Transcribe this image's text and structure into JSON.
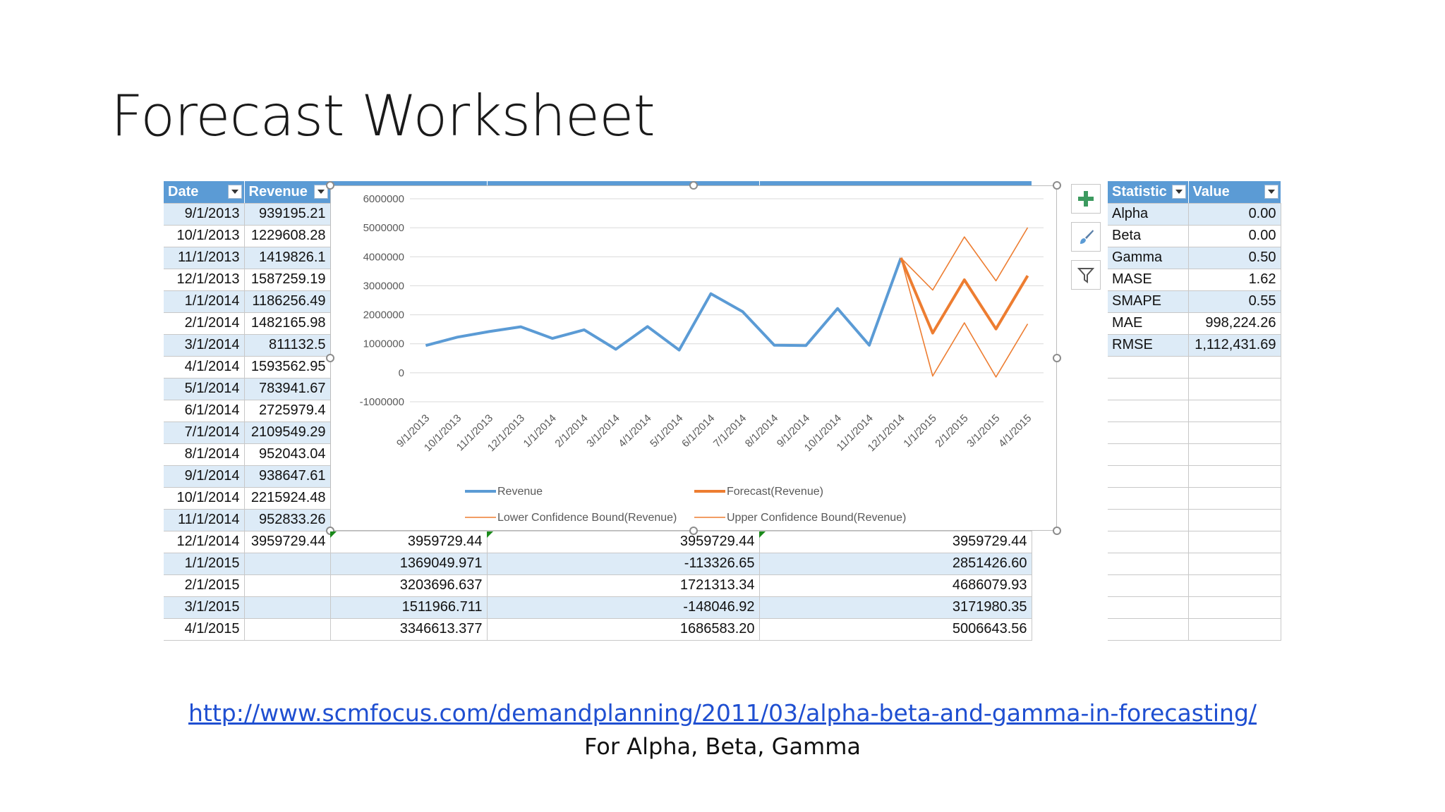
{
  "slide": {
    "title": "Forecast Worksheet",
    "link": "http://www.scmfocus.com/demandplanning/2011/03/alpha-beta-and-gamma-in-forecasting/",
    "caption": "For Alpha, Beta, Gamma"
  },
  "table": {
    "headers": [
      "Date",
      "Revenue"
    ],
    "rows": [
      {
        "date": "9/1/2013",
        "revenue": "939195.21",
        "forecast": "",
        "lower": "",
        "upper": ""
      },
      {
        "date": "10/1/2013",
        "revenue": "1229608.28",
        "forecast": "",
        "lower": "",
        "upper": ""
      },
      {
        "date": "11/1/2013",
        "revenue": "1419826.1",
        "forecast": "",
        "lower": "",
        "upper": ""
      },
      {
        "date": "12/1/2013",
        "revenue": "1587259.19",
        "forecast": "",
        "lower": "",
        "upper": ""
      },
      {
        "date": "1/1/2014",
        "revenue": "1186256.49",
        "forecast": "",
        "lower": "",
        "upper": ""
      },
      {
        "date": "2/1/2014",
        "revenue": "1482165.98",
        "forecast": "",
        "lower": "",
        "upper": ""
      },
      {
        "date": "3/1/2014",
        "revenue": "811132.5",
        "forecast": "",
        "lower": "",
        "upper": ""
      },
      {
        "date": "4/1/2014",
        "revenue": "1593562.95",
        "forecast": "",
        "lower": "",
        "upper": ""
      },
      {
        "date": "5/1/2014",
        "revenue": "783941.67",
        "forecast": "",
        "lower": "",
        "upper": ""
      },
      {
        "date": "6/1/2014",
        "revenue": "2725979.4",
        "forecast": "",
        "lower": "",
        "upper": ""
      },
      {
        "date": "7/1/2014",
        "revenue": "2109549.29",
        "forecast": "",
        "lower": "",
        "upper": ""
      },
      {
        "date": "8/1/2014",
        "revenue": "952043.04",
        "forecast": "",
        "lower": "",
        "upper": ""
      },
      {
        "date": "9/1/2014",
        "revenue": "938647.61",
        "forecast": "",
        "lower": "",
        "upper": ""
      },
      {
        "date": "10/1/2014",
        "revenue": "2215924.48",
        "forecast": "",
        "lower": "",
        "upper": ""
      },
      {
        "date": "11/1/2014",
        "revenue": "952833.26",
        "forecast": "",
        "lower": "",
        "upper": ""
      },
      {
        "date": "12/1/2014",
        "revenue": "3959729.44",
        "forecast": "3959729.44",
        "lower": "3959729.44",
        "upper": "3959729.44"
      },
      {
        "date": "1/1/2015",
        "revenue": "",
        "forecast": "1369049.971",
        "lower": "-113326.65",
        "upper": "2851426.60"
      },
      {
        "date": "2/1/2015",
        "revenue": "",
        "forecast": "3203696.637",
        "lower": "1721313.34",
        "upper": "4686079.93"
      },
      {
        "date": "3/1/2015",
        "revenue": "",
        "forecast": "1511966.711",
        "lower": "-148046.92",
        "upper": "3171980.35"
      },
      {
        "date": "4/1/2015",
        "revenue": "",
        "forecast": "3346613.377",
        "lower": "1686583.20",
        "upper": "5006643.56"
      }
    ]
  },
  "stats": {
    "headers": [
      "Statistic",
      "Value"
    ],
    "rows": [
      {
        "name": "Alpha",
        "value": "0.00"
      },
      {
        "name": "Beta",
        "value": "0.00"
      },
      {
        "name": "Gamma",
        "value": "0.50"
      },
      {
        "name": "MASE",
        "value": "1.62"
      },
      {
        "name": "SMAPE",
        "value": "0.55"
      },
      {
        "name": "MAE",
        "value": "998,224.26"
      },
      {
        "name": "RMSE",
        "value": "1,112,431.69"
      }
    ]
  },
  "chart_controls": [
    "chart-elements-plus-icon",
    "chart-styles-brush-icon",
    "chart-filters-funnel-icon"
  ],
  "chart_data": {
    "type": "line",
    "categories": [
      "9/1/2013",
      "10/1/2013",
      "11/1/2013",
      "12/1/2013",
      "1/1/2014",
      "2/1/2014",
      "3/1/2014",
      "4/1/2014",
      "5/1/2014",
      "6/1/2014",
      "7/1/2014",
      "8/1/2014",
      "9/1/2014",
      "10/1/2014",
      "11/1/2014",
      "12/1/2014",
      "1/1/2015",
      "2/1/2015",
      "3/1/2015",
      "4/1/2015"
    ],
    "y_ticks": [
      "6000000",
      "5000000",
      "4000000",
      "3000000",
      "2000000",
      "1000000",
      "0",
      "-1000000"
    ],
    "ylim": [
      -1000000,
      6000000
    ],
    "grid": true,
    "legend_position": "bottom",
    "series": [
      {
        "name": "Revenue",
        "color": "#5b9bd5",
        "width": "thick",
        "values": [
          939195.21,
          1229608.28,
          1419826.1,
          1587259.19,
          1186256.49,
          1482165.98,
          811132.5,
          1593562.95,
          783941.67,
          2725979.4,
          2109549.29,
          952043.04,
          938647.61,
          2215924.48,
          952833.26,
          3959729.44,
          null,
          null,
          null,
          null
        ]
      },
      {
        "name": "Forecast(Revenue)",
        "color": "#ed7d31",
        "width": "thick",
        "values": [
          null,
          null,
          null,
          null,
          null,
          null,
          null,
          null,
          null,
          null,
          null,
          null,
          null,
          null,
          null,
          3959729.44,
          1369049.971,
          3203696.637,
          1511966.711,
          3346613.377
        ]
      },
      {
        "name": "Lower Confidence Bound(Revenue)",
        "color": "#ed7d31",
        "width": "thin",
        "values": [
          null,
          null,
          null,
          null,
          null,
          null,
          null,
          null,
          null,
          null,
          null,
          null,
          null,
          null,
          null,
          3959729.44,
          -113326.65,
          1721313.34,
          -148046.92,
          1686583.2
        ]
      },
      {
        "name": "Upper Confidence Bound(Revenue)",
        "color": "#ed7d31",
        "width": "thin",
        "values": [
          null,
          null,
          null,
          null,
          null,
          null,
          null,
          null,
          null,
          null,
          null,
          null,
          null,
          null,
          null,
          3959729.44,
          2851426.6,
          4686079.93,
          3171980.35,
          5006643.56
        ]
      }
    ]
  }
}
